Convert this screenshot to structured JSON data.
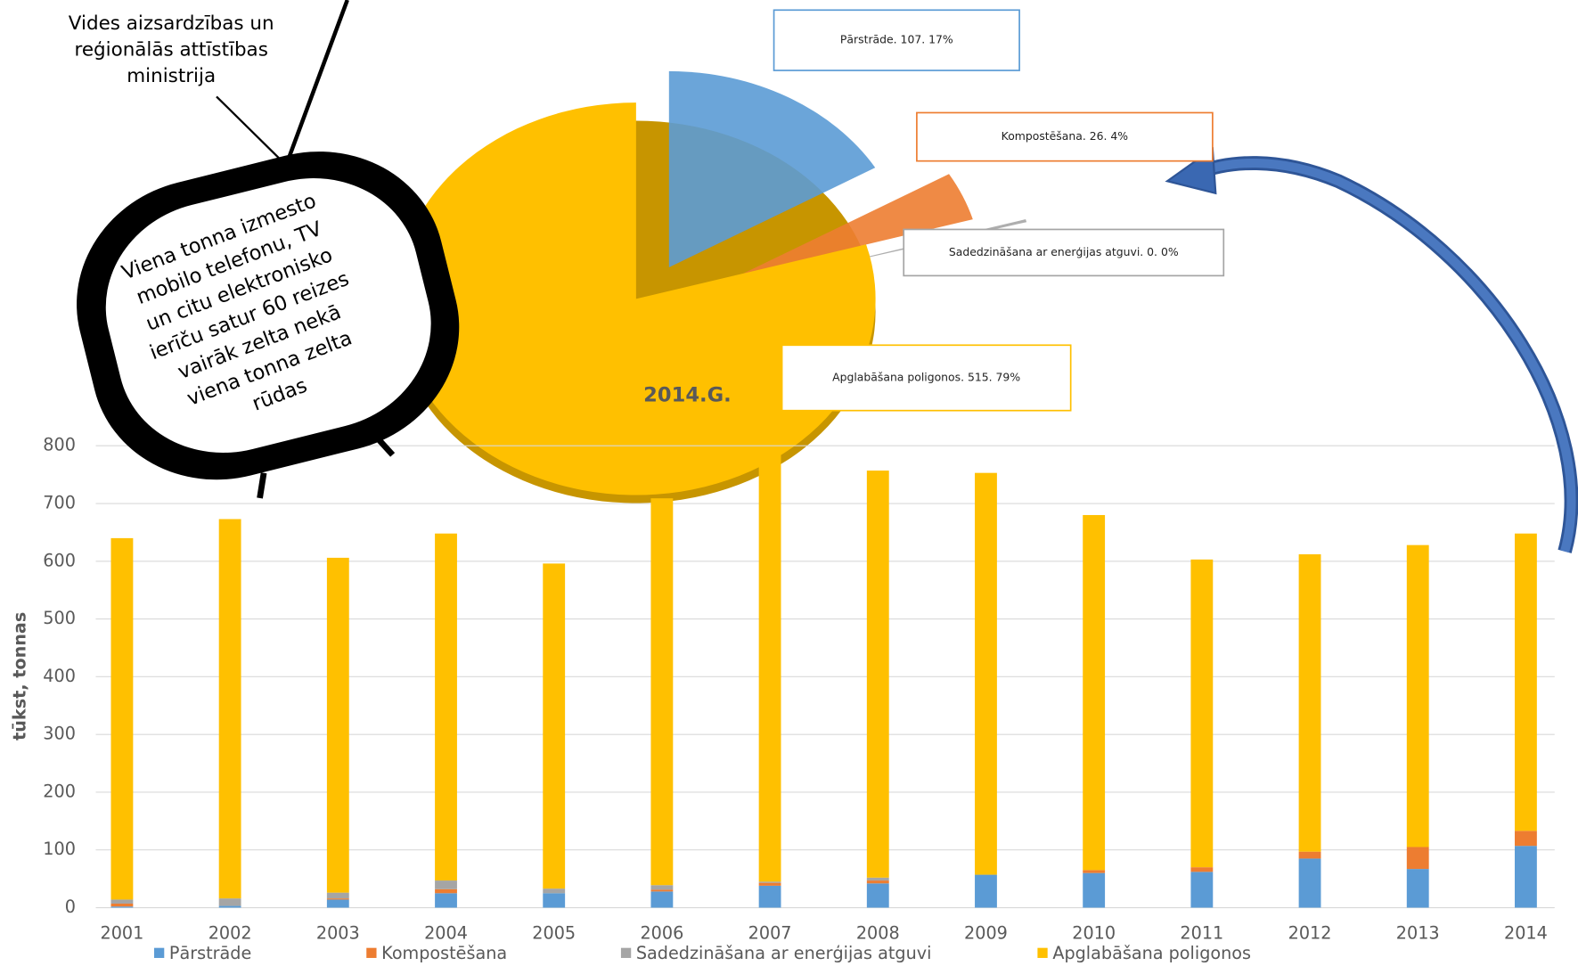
{
  "chart_data": [
    {
      "type": "bar",
      "stacked": true,
      "y_label": "tūkst, tonnas",
      "categories": [
        "2001",
        "2002",
        "2003",
        "2004",
        "2005",
        "2006",
        "2007",
        "2008",
        "2009",
        "2010",
        "2011",
        "2012",
        "2013",
        "2014"
      ],
      "series": [
        {
          "name": "Pārstrāde",
          "color": "#5b9bd5",
          "values": [
            2,
            3,
            14,
            25,
            25,
            28,
            38,
            42,
            57,
            60,
            62,
            85,
            67,
            107
          ]
        },
        {
          "name": "Kompostēšana",
          "color": "#ed7d31",
          "values": [
            5,
            0,
            2,
            7,
            0,
            3,
            5,
            5,
            0,
            5,
            8,
            12,
            38,
            26
          ]
        },
        {
          "name": "Sadedzināšana ar enerģijas atguvi",
          "color": "#a5a5a5",
          "values": [
            7,
            13,
            10,
            15,
            8,
            8,
            2,
            5,
            0,
            0,
            0,
            0,
            0,
            0
          ]
        },
        {
          "name": "Apglabāšana poligonos",
          "color": "#ffc000",
          "values": [
            626,
            657,
            580,
            601,
            563,
            670,
            739,
            705,
            696,
            615,
            533,
            515,
            523,
            515
          ]
        }
      ],
      "ylim": [
        0,
        800
      ],
      "yticks": [
        0,
        100,
        200,
        300,
        400,
        500,
        600,
        700,
        800
      ],
      "grid": true,
      "legend": "bottom"
    },
    {
      "type": "pie",
      "title": "2014.G.",
      "values": [
        107,
        26,
        0,
        515
      ],
      "value_labels": [
        "Pārstrāde. 107. 17%",
        "Kompostēšana. 26. 4%",
        "Sadedzināšana ar enerģijas atguvi. 0. 0%",
        "Apglabāšana poligonos. 515. 79%"
      ],
      "colors": [
        "#5b9bd5",
        "#ed7d31",
        "#a5a5a5",
        "#ffc000"
      ]
    }
  ],
  "logo": {
    "lines": [
      "Vides aizsardzības un",
      "reģionālās attīstības",
      "ministrija"
    ]
  },
  "callout": {
    "lines": [
      "Viena tonna izmesto",
      "mobilo telefonu, TV",
      "un citu elektronisko",
      "ierīču satur 60 reizes",
      "vairāk zelta nekā",
      "viena tonna zelta",
      "rūdas"
    ]
  }
}
